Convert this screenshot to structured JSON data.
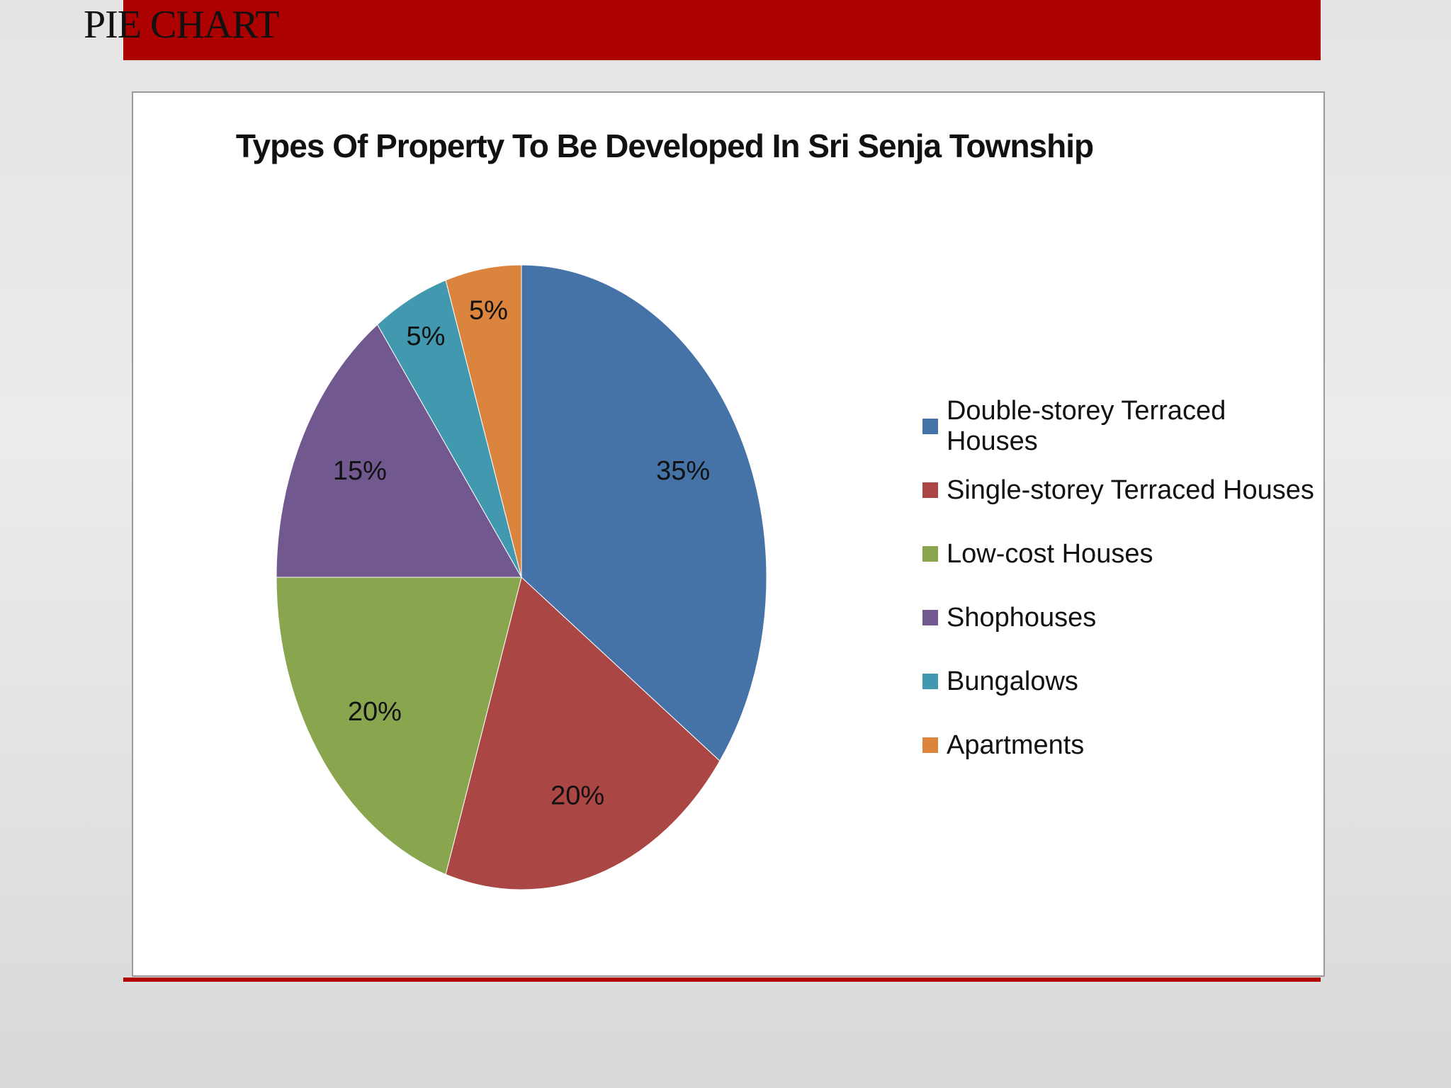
{
  "slide": {
    "title": "PIE CHART"
  },
  "colors": {
    "header_bar": "#ad0000",
    "bottom_line": "#b10000"
  },
  "chart_data": {
    "type": "pie",
    "title": "Types Of Property To Be Developed In Sri Senja Township",
    "legend_position": "right",
    "slices": [
      {
        "label": "Double-storey Terraced Houses",
        "value": 35,
        "value_label": "35%",
        "color": "#4572a7"
      },
      {
        "label": "Single-storey Terraced Houses",
        "value": 20,
        "value_label": "20%",
        "color": "#aa4643"
      },
      {
        "label": "Low-cost Houses",
        "value": 20,
        "value_label": "20%",
        "color": "#89a54e"
      },
      {
        "label": "Shophouses",
        "value": 15,
        "value_label": "15%",
        "color": "#71588f"
      },
      {
        "label": "Bungalows",
        "value": 5,
        "value_label": "5%",
        "color": "#4198af"
      },
      {
        "label": "Apartments",
        "value": 5,
        "value_label": "5%",
        "color": "#db843d"
      }
    ]
  }
}
